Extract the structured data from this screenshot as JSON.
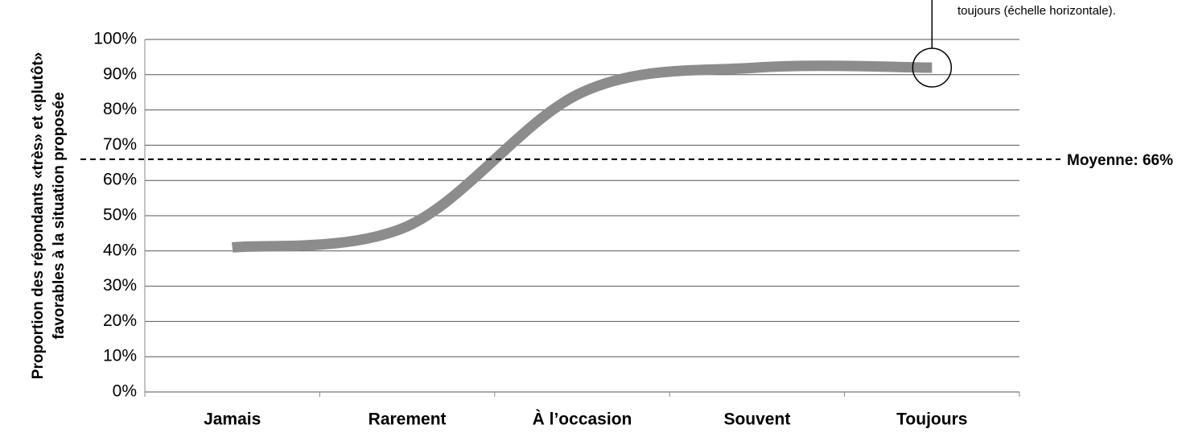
{
  "chart_data": {
    "type": "line",
    "annotation": "toujours (échelle horizontale).",
    "ylabel": [
      "Proportion des répondants «très» et «plutôt»",
      "favorables à la situation proposée"
    ],
    "categories": [
      "Jamais",
      "Rarement",
      "À l’occasion",
      "Souvent",
      "Toujours"
    ],
    "series": [
      {
        "name": "Proportion",
        "color": "#8c8c8c",
        "values": [
          41,
          47,
          85,
          92,
          92
        ]
      }
    ],
    "mean_line": {
      "value": 66,
      "label": "Moyenne: 66%"
    },
    "ylim": [
      0,
      100
    ],
    "yticks": [
      {
        "value": 0,
        "label": "0%"
      },
      {
        "value": 10,
        "label": "10%"
      },
      {
        "value": 20,
        "label": "20%"
      },
      {
        "value": 30,
        "label": "30%"
      },
      {
        "value": 40,
        "label": "40%"
      },
      {
        "value": 50,
        "label": "50%"
      },
      {
        "value": 60,
        "label": "60%"
      },
      {
        "value": 70,
        "label": "70%"
      },
      {
        "value": 80,
        "label": "80%"
      },
      {
        "value": 90,
        "label": "90%"
      },
      {
        "value": 100,
        "label": "100%"
      }
    ],
    "grid": true
  }
}
